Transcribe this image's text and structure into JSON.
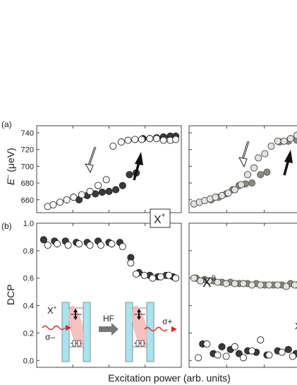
{
  "panel_labels": {
    "a": "(a)",
    "b": "(b)"
  },
  "xlabel": "Excitation power (arb. units)",
  "ylabel_a": "E⁻ (μeV)",
  "ylabel_a_main": "E",
  "ylabel_a_sup": "–",
  "ylabel_a_unit": " (μeV)",
  "ylabel_b": "DCP",
  "annotations": {
    "xplus_box_main": "X",
    "xplus_box_sup": "+",
    "x0_main": "X",
    "x0_sup": "0",
    "truncated_right": "X",
    "inset_xplus_main": "X",
    "inset_xplus_sup": "+",
    "inset_sigma_minus": "σ–",
    "inset_sigma_plus": "σ+",
    "inset_hf": "HF"
  },
  "colors": {
    "filled_dark": "#3a3a3a",
    "filled_gray": "#8a8a82",
    "open_fill": "#ffffff",
    "open_light": "#e2e2e0",
    "qd_barrier": "#a8e4ee",
    "wavefunction": "#f3b6b6",
    "photon": "#e0201e",
    "arrow_gray": "#777777"
  },
  "chart_data": [
    {
      "type": "scatter",
      "panel": "a-left",
      "ylabel": "E⁻ (μeV)",
      "ylim": [
        648,
        745
      ],
      "yticks": [
        660,
        680,
        700,
        720,
        740
      ],
      "xlim": [
        0,
        1
      ],
      "series": [
        {
          "marker": "filled-dark",
          "x": [
            0.28,
            0.34,
            0.4,
            0.45,
            0.5,
            0.55,
            0.6,
            0.65,
            0.7,
            0.75,
            0.8,
            0.85,
            0.9,
            0.95,
            0.99
          ],
          "y": [
            660,
            665,
            667,
            669,
            670,
            672,
            677,
            690,
            692,
            733,
            733,
            734,
            735,
            736,
            736
          ]
        },
        {
          "marker": "open",
          "x": [
            0.05,
            0.09,
            0.14,
            0.19,
            0.24,
            0.3,
            0.36,
            0.42,
            0.48,
            0.53,
            0.59,
            0.64,
            0.69,
            0.74,
            0.8,
            0.85,
            0.9,
            0.95,
            0.99
          ],
          "y": [
            652,
            654,
            657,
            660,
            663,
            666,
            670,
            677,
            684,
            724,
            729,
            731,
            732,
            732,
            733,
            733,
            731,
            731,
            732
          ]
        }
      ]
    },
    {
      "type": "scatter",
      "panel": "a-right",
      "ylim": [
        648,
        745
      ],
      "xlim": [
        0,
        1
      ],
      "series": [
        {
          "marker": "filled-gray",
          "x": [
            0.18,
            0.25,
            0.32,
            0.38,
            0.44,
            0.5,
            0.56,
            0.64,
            0.7,
            0.82,
            0.9,
            0.98
          ],
          "y": [
            660,
            663,
            667,
            672,
            677,
            679,
            680,
            690,
            693,
            729,
            730,
            731
          ]
        },
        {
          "marker": "open-light",
          "x": [
            0.02,
            0.07,
            0.12,
            0.17,
            0.22,
            0.28,
            0.34,
            0.4,
            0.46,
            0.52,
            0.58,
            0.62,
            0.68,
            0.74,
            0.8,
            0.86,
            0.92,
            0.98
          ],
          "y": [
            655,
            657,
            659,
            661,
            663,
            665,
            668,
            672,
            678,
            690,
            698,
            710,
            715,
            724,
            730,
            730,
            733,
            737
          ]
        }
      ]
    },
    {
      "type": "scatter",
      "panel": "b-left",
      "ylabel": "DCP",
      "ylim": [
        -0.05,
        1.0
      ],
      "yticks": [
        0.0,
        0.2,
        0.4,
        0.6,
        0.8,
        1.0
      ],
      "yticklabels": [
        "0.0",
        "0.2",
        "0.4",
        "0.6",
        "0.8",
        "1.0"
      ],
      "xlim": [
        0,
        1
      ],
      "series": [
        {
          "marker": "filled-dark",
          "x": [
            0.02,
            0.1,
            0.18,
            0.26,
            0.34,
            0.42,
            0.5,
            0.58,
            0.66,
            0.72,
            0.8,
            0.86,
            0.92,
            0.97
          ],
          "y": [
            0.88,
            0.87,
            0.87,
            0.86,
            0.86,
            0.87,
            0.86,
            0.86,
            0.75,
            0.64,
            0.62,
            0.61,
            0.62,
            0.61
          ]
        },
        {
          "marker": "open",
          "x": [
            0.05,
            0.12,
            0.2,
            0.28,
            0.36,
            0.44,
            0.52,
            0.6,
            0.66,
            0.7,
            0.76,
            0.82,
            0.88,
            0.94,
            0.99
          ],
          "y": [
            0.84,
            0.85,
            0.84,
            0.85,
            0.84,
            0.84,
            0.85,
            0.83,
            0.71,
            0.63,
            0.62,
            0.6,
            0.61,
            0.62,
            0.6
          ]
        }
      ]
    },
    {
      "type": "scatter",
      "panel": "b-right",
      "ylim": [
        -0.05,
        1.0
      ],
      "xlim": [
        0,
        1
      ],
      "series": [
        {
          "marker": "filled-gray",
          "x": [
            0.04,
            0.12,
            0.2,
            0.28,
            0.36,
            0.44,
            0.52,
            0.6,
            0.68,
            0.76,
            0.84,
            0.92,
            0.98
          ],
          "y": [
            0.6,
            0.59,
            0.58,
            0.57,
            0.57,
            0.56,
            0.56,
            0.56,
            0.55,
            0.55,
            0.55,
            0.56,
            0.55
          ]
        },
        {
          "marker": "open-light",
          "x": [
            0.02,
            0.08,
            0.16,
            0.24,
            0.32,
            0.4,
            0.48,
            0.56,
            0.64,
            0.72,
            0.8,
            0.88,
            0.96
          ],
          "y": [
            0.6,
            0.58,
            0.58,
            0.57,
            0.56,
            0.56,
            0.56,
            0.55,
            0.55,
            0.55,
            0.55,
            0.54,
            0.55
          ]
        },
        {
          "marker": "filled-dark",
          "x": [
            0.1,
            0.2,
            0.28,
            0.36,
            0.44,
            0.52,
            0.6,
            0.7,
            0.8,
            0.9,
            0.97
          ],
          "y": [
            0.12,
            0.05,
            0.1,
            0.08,
            0.05,
            0.07,
            0.06,
            0.04,
            0.07,
            0.08,
            0.05
          ]
        },
        {
          "marker": "open",
          "x": [
            0.06,
            0.14,
            0.24,
            0.32,
            0.4,
            0.48,
            0.56,
            0.64,
            0.72,
            0.84,
            0.94
          ],
          "y": [
            0.02,
            0.12,
            0.04,
            0.03,
            0.1,
            0.02,
            0.07,
            0.15,
            0.04,
            0.06,
            0.03
          ]
        }
      ]
    }
  ]
}
